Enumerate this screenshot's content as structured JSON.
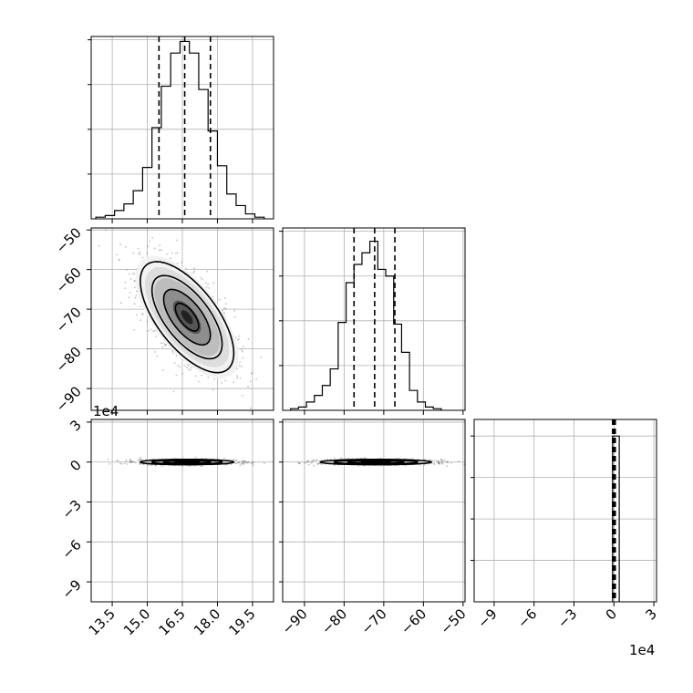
{
  "chart_data": {
    "type": "corner",
    "grid": true,
    "variables": [
      {
        "axis_ticks": [
          "13.5",
          "15.0",
          "16.5",
          "18.0",
          "19.5"
        ],
        "range": [
          12.6,
          20.4
        ]
      },
      {
        "axis_ticks": [
          "−90",
          "−80",
          "−70",
          "−60",
          "−50"
        ],
        "range": [
          -95.5,
          -49.5
        ]
      },
      {
        "axis_ticks": [
          "−9",
          "−6",
          "−3",
          "0",
          "3"
        ],
        "range": [
          -10.5,
          3.2
        ],
        "offset_text": "1e4"
      }
    ],
    "row1_ticks": [
      "−50",
      "−60",
      "−70",
      "−80",
      "−90"
    ],
    "row2_ticks": [
      "3",
      "0",
      "−3",
      "−6",
      "−9"
    ],
    "row2_offset_text": "1e4",
    "histograms": [
      {
        "variable": 0,
        "bins": [
          [
            12.8,
            13.2,
            1
          ],
          [
            13.2,
            13.6,
            2
          ],
          [
            13.6,
            14.0,
            5
          ],
          [
            14.0,
            14.4,
            9
          ],
          [
            14.4,
            14.8,
            17
          ],
          [
            14.8,
            15.2,
            31
          ],
          [
            15.2,
            15.6,
            55
          ],
          [
            15.6,
            16.0,
            80
          ],
          [
            16.0,
            16.4,
            100
          ],
          [
            16.4,
            16.8,
            107
          ],
          [
            16.8,
            17.2,
            100
          ],
          [
            17.2,
            17.6,
            78
          ],
          [
            17.6,
            18.0,
            53
          ],
          [
            18.0,
            18.4,
            32
          ],
          [
            18.4,
            18.8,
            15
          ],
          [
            18.8,
            19.2,
            8
          ],
          [
            19.2,
            19.6,
            3
          ],
          [
            19.6,
            20.0,
            1
          ]
        ],
        "max": 110,
        "quantiles": [
          15.5,
          16.6,
          17.7
        ]
      },
      {
        "variable": 1,
        "bins": [
          [
            -93.5,
            -91.5,
            1
          ],
          [
            -91.5,
            -89.5,
            2
          ],
          [
            -89.5,
            -87.5,
            5
          ],
          [
            -87.5,
            -85.5,
            9
          ],
          [
            -85.5,
            -83.5,
            15
          ],
          [
            -83.5,
            -81.5,
            25
          ],
          [
            -81.5,
            -79.5,
            53
          ],
          [
            -79.5,
            -77.5,
            77
          ],
          [
            -77.5,
            -75.5,
            88
          ],
          [
            -75.5,
            -73.5,
            95
          ],
          [
            -73.5,
            -71.5,
            102
          ],
          [
            -71.5,
            -69.5,
            85
          ],
          [
            -69.5,
            -67.5,
            81
          ],
          [
            -67.5,
            -65.5,
            52
          ],
          [
            -65.5,
            -63.5,
            35
          ],
          [
            -63.5,
            -61.5,
            12
          ],
          [
            -61.5,
            -59.5,
            5
          ],
          [
            -59.5,
            -57.5,
            2
          ],
          [
            -57.5,
            -55.5,
            1
          ]
        ],
        "max": 110,
        "quantiles": [
          -77.5,
          -72.3,
          -67.2
        ]
      },
      {
        "variable": 2,
        "bins": [
          [
            -0.1,
            0.4,
            100
          ]
        ],
        "max": 110,
        "quantiles": [
          -0.1,
          0.0,
          0.1
        ]
      }
    ],
    "joint_plots": [
      {
        "x_variable": 0,
        "y_variable": 1,
        "center": [
          16.7,
          -72
        ],
        "spread": [
          1.0,
          7.0
        ],
        "correlation": -0.65
      },
      {
        "x_variable": 0,
        "y_variable": 2,
        "center": [
          16.7,
          0.0
        ],
        "spread": [
          1.0,
          0.1
        ],
        "correlation": 0.0
      },
      {
        "x_variable": 1,
        "y_variable": 2,
        "center": [
          -72,
          0.0
        ],
        "spread": [
          7.0,
          0.1
        ],
        "correlation": 0.0
      }
    ]
  }
}
